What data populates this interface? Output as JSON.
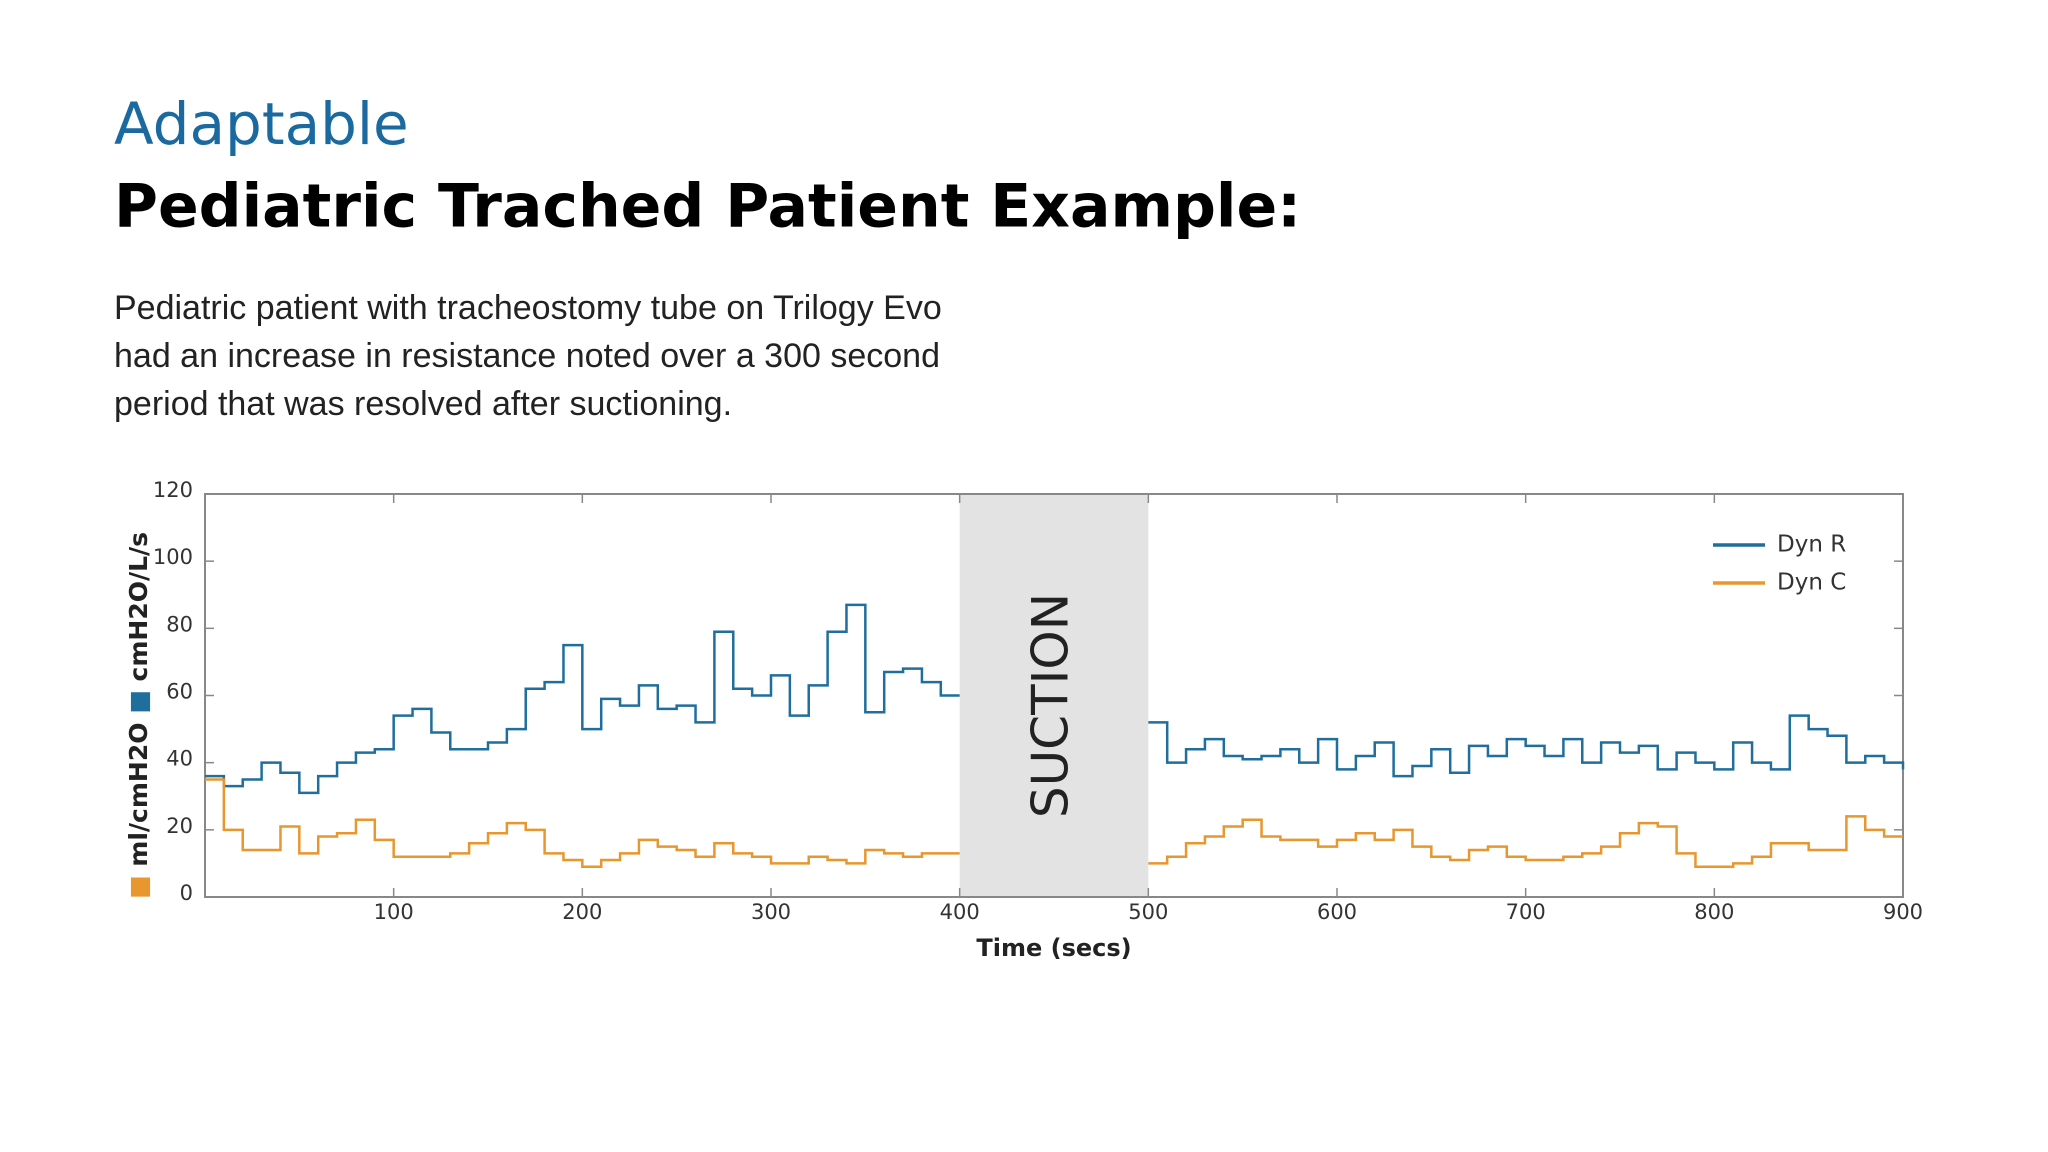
{
  "header": {
    "subtitle": "Adaptable",
    "title": "Pediatric Trached Patient Example:"
  },
  "description": [
    "Pediatric patient with tracheostomy tube on Trilogy Evo",
    "had an increase in resistance noted over a 300 second",
    "period that was resolved after suctioning."
  ],
  "chart_data": {
    "type": "step",
    "x": [
      0,
      10,
      20,
      30,
      40,
      50,
      60,
      70,
      80,
      90,
      100,
      110,
      120,
      130,
      140,
      150,
      160,
      170,
      180,
      190,
      200,
      210,
      220,
      230,
      240,
      250,
      260,
      270,
      280,
      290,
      300,
      310,
      320,
      330,
      340,
      350,
      360,
      370,
      380,
      390,
      400,
      410,
      420,
      430,
      440,
      450,
      460,
      470,
      480,
      490,
      500,
      510,
      520,
      530,
      540,
      550,
      560,
      570,
      580,
      590,
      600,
      610,
      620,
      630,
      640,
      650,
      660,
      670,
      680,
      690,
      700,
      710,
      720,
      730,
      740,
      750,
      760,
      770,
      780,
      790,
      800,
      810,
      820,
      830,
      840,
      850,
      860,
      870,
      880,
      890,
      900
    ],
    "series": [
      {
        "name": "Dyn R",
        "color": "#1f6e9c",
        "values": [
          36,
          33,
          35,
          40,
          37,
          31,
          36,
          40,
          43,
          44,
          54,
          56,
          49,
          44,
          44,
          46,
          50,
          62,
          64,
          75,
          50,
          59,
          57,
          63,
          56,
          57,
          52,
          79,
          62,
          60,
          66,
          54,
          63,
          79,
          87,
          55,
          67,
          68,
          64,
          60,
          null,
          null,
          null,
          null,
          null,
          null,
          null,
          null,
          null,
          null,
          52,
          40,
          44,
          47,
          42,
          41,
          42,
          44,
          40,
          47,
          38,
          42,
          46,
          36,
          39,
          44,
          37,
          45,
          42,
          47,
          45,
          42,
          47,
          40,
          46,
          43,
          45,
          38,
          43,
          40,
          38,
          46,
          40,
          38,
          54,
          50,
          48,
          40,
          42,
          40,
          38
        ]
      },
      {
        "name": "Dyn C",
        "color": "#e8962e",
        "values": [
          35,
          20,
          14,
          14,
          21,
          13,
          18,
          19,
          23,
          17,
          12,
          12,
          12,
          13,
          16,
          19,
          22,
          20,
          13,
          11,
          9,
          11,
          13,
          17,
          15,
          14,
          12,
          16,
          13,
          12,
          10,
          10,
          12,
          11,
          10,
          14,
          13,
          12,
          13,
          13,
          null,
          null,
          null,
          null,
          null,
          null,
          null,
          null,
          null,
          null,
          10,
          12,
          16,
          18,
          21,
          23,
          18,
          17,
          17,
          15,
          17,
          19,
          17,
          20,
          15,
          12,
          11,
          14,
          15,
          12,
          11,
          11,
          12,
          13,
          15,
          19,
          22,
          21,
          13,
          9,
          9,
          10,
          12,
          16,
          16,
          14,
          14,
          24,
          20,
          18,
          18
        ]
      }
    ],
    "xlim": [
      0,
      900
    ],
    "xticks": [
      100,
      200,
      300,
      400,
      500,
      600,
      700,
      800,
      900
    ],
    "ylim": [
      0,
      120
    ],
    "yticks": [
      0,
      20,
      40,
      60,
      80,
      100,
      120
    ],
    "xlabel": "Time (secs)",
    "ylabel": [
      "ml/cmH2O",
      "cmH2O/L/s"
    ],
    "shaded_region": {
      "x": [
        400,
        500
      ],
      "label": "SUCTION",
      "color": "#e3e3e3"
    },
    "legend": "upper right",
    "grid": false
  }
}
